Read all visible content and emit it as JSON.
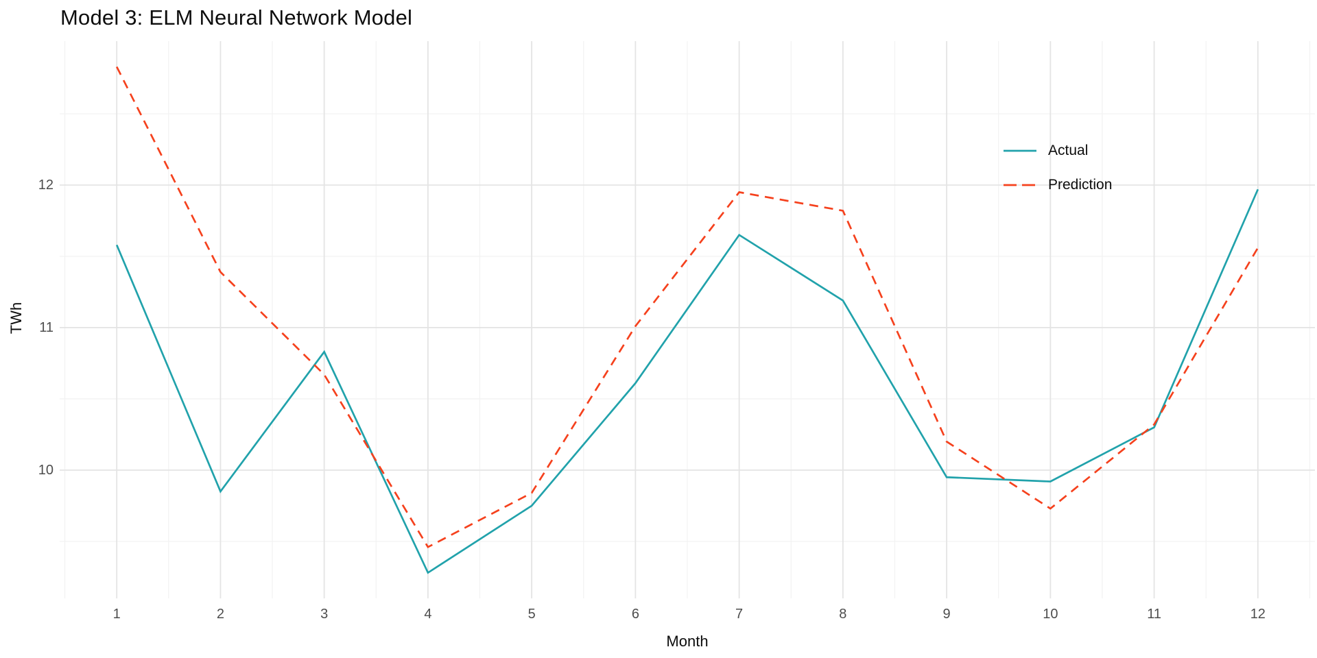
{
  "chart_data": {
    "type": "line",
    "title": "Model 3: ELM Neural Network Model",
    "xlabel": "Month",
    "ylabel": "TWh",
    "x": [
      1,
      2,
      3,
      4,
      5,
      6,
      7,
      8,
      9,
      10,
      11,
      12
    ],
    "x_tick_labels": [
      "1",
      "2",
      "3",
      "4",
      "5",
      "6",
      "7",
      "8",
      "9",
      "10",
      "11",
      "12"
    ],
    "y_ticks": [
      10,
      11,
      12
    ],
    "y_tick_labels": [
      "10",
      "11",
      "12"
    ],
    "xlim": [
      0.45,
      12.55
    ],
    "ylim": [
      9.1,
      13.01
    ],
    "grid": {
      "on": true,
      "major_x": [
        1,
        2,
        3,
        4,
        5,
        6,
        7,
        8,
        9,
        10,
        11,
        12
      ],
      "minor_x": [
        0.5,
        1.5,
        2.5,
        3.5,
        4.5,
        5.5,
        6.5,
        7.5,
        8.5,
        9.5,
        10.5,
        11.5,
        12.5
      ],
      "major_y": [
        10,
        11,
        12
      ],
      "minor_y": [
        9.5,
        10.5,
        11.5,
        12.5
      ],
      "major_color": "#e4e4e4",
      "minor_color": "#f2f2f2"
    },
    "legend": {
      "position": "inside-top-right"
    },
    "series": [
      {
        "name": "Actual",
        "color": "#21a2ab",
        "style": "solid",
        "values": [
          11.58,
          9.85,
          10.83,
          9.28,
          9.75,
          10.61,
          11.65,
          11.19,
          9.95,
          9.92,
          10.3,
          11.97
        ]
      },
      {
        "name": "Prediction",
        "color": "#f5411d",
        "style": "dashed",
        "values": [
          12.83,
          11.39,
          10.67,
          9.46,
          9.84,
          11.01,
          11.95,
          11.82,
          10.2,
          9.73,
          10.32,
          11.56
        ]
      }
    ],
    "colors": {
      "axis_text": "#4d4d4d",
      "title_text": "#0d0d0d"
    }
  }
}
